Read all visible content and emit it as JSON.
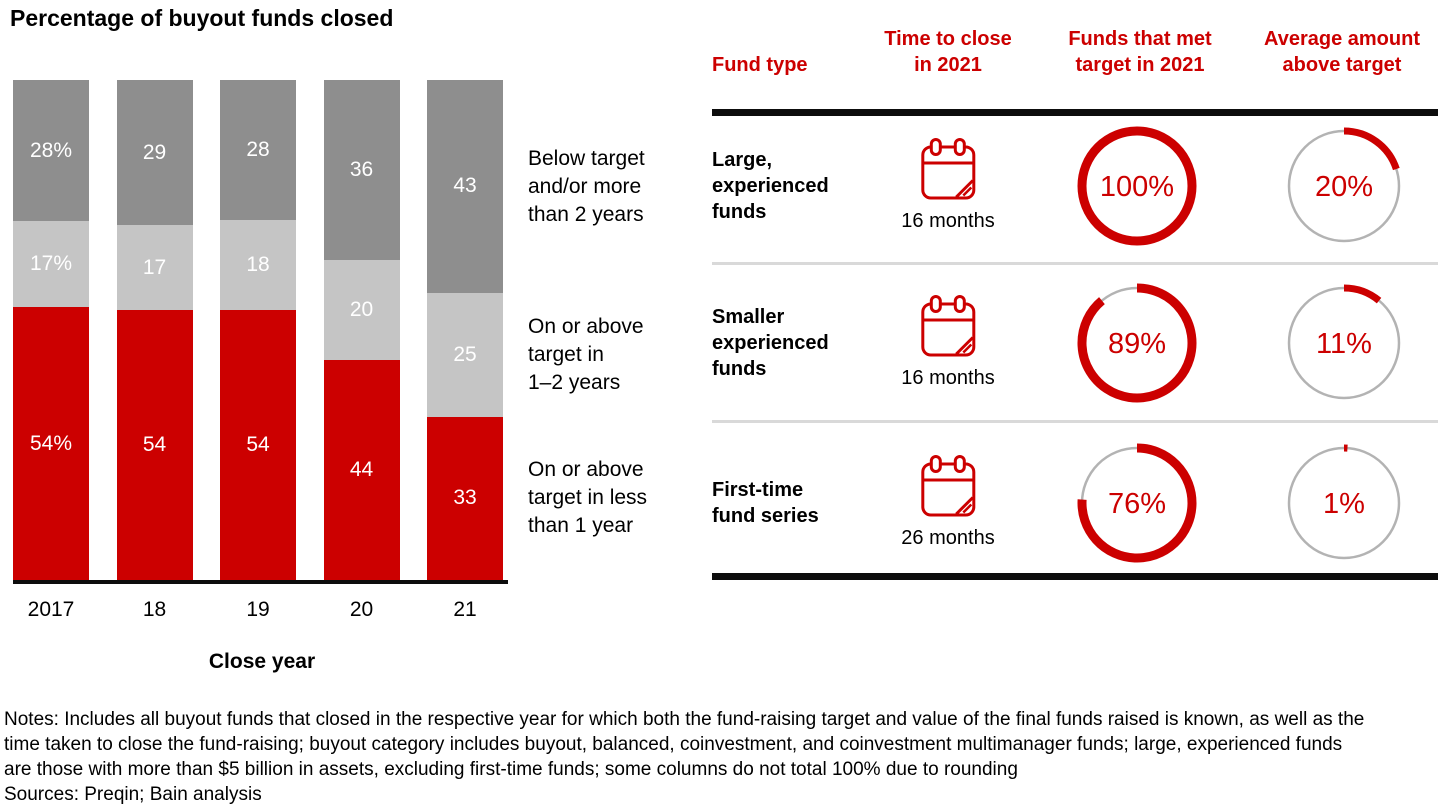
{
  "chart_data": {
    "type": "bar",
    "stacked": true,
    "title": "Percentage of buyout funds closed",
    "xlabel": "Close year",
    "ylabel": "",
    "unit": "%",
    "ylim": [
      0,
      100
    ],
    "grid": false,
    "legend_position": "right",
    "categories": [
      "2017",
      "18",
      "19",
      "20",
      "21"
    ],
    "series": [
      {
        "name": "On or above target in less than 1 year",
        "color": "#cc0000",
        "values": [
          54,
          54,
          54,
          44,
          33
        ],
        "display_labels": [
          "54%",
          "54",
          "54",
          "44",
          "33"
        ]
      },
      {
        "name": "On or above target in 1–2 years",
        "color": "#c5c5c5",
        "values": [
          17,
          17,
          18,
          20,
          25
        ],
        "display_labels": [
          "17%",
          "17",
          "18",
          "20",
          "25"
        ]
      },
      {
        "name": "Below target and/or more than 2 years",
        "color": "#8e8e8e",
        "values": [
          28,
          29,
          28,
          36,
          43
        ],
        "display_labels": [
          "28%",
          "29",
          "28",
          "36",
          "43"
        ]
      }
    ],
    "legend_labels": [
      "Below target\nand/or more\nthan 2 years",
      "On or above\ntarget in\n1–2 years",
      "On or above\ntarget in less\nthan 1 year"
    ]
  },
  "table": {
    "columns": [
      "Fund type",
      "Time to close\nin 2021",
      "Funds that met\ntarget in 2021",
      "Average amount\nabove target"
    ],
    "rows": [
      {
        "fund_type": "Large,\nexperienced\nfunds",
        "time_to_close": "16 months",
        "met_target": 100,
        "met_target_label": "100%",
        "above_target": 20,
        "above_target_label": "20%"
      },
      {
        "fund_type": "Smaller\nexperienced\nfunds",
        "time_to_close": "16 months",
        "met_target": 89,
        "met_target_label": "89%",
        "above_target": 11,
        "above_target_label": "11%"
      },
      {
        "fund_type": "First-time\nfund series",
        "time_to_close": "26 months",
        "met_target": 76,
        "met_target_label": "76%",
        "above_target": 1,
        "above_target_label": "1%"
      }
    ]
  },
  "notes_lines": [
    "Notes: Includes all buyout funds that closed in the respective year for which both the fund-raising target and value of the final funds raised is known, as well as the",
    "time taken to close the fund-raising; buyout category includes buyout, balanced, coinvestment, and coinvestment multimanager funds; large, experienced funds",
    "are those with more than $5 billion in assets, excluding first-time funds; some columns do not total 100% due to rounding"
  ],
  "sources_line": "Sources: Preqin; Bain analysis",
  "colors": {
    "red": "#cc0000",
    "light_gray": "#c5c5c5",
    "dark_gray": "#8e8e8e",
    "ring_gray": "#b3b3b3",
    "divider_gray": "#d9d9d9",
    "black": "#0d0d0d",
    "bar_label_white": "#ffffff"
  }
}
